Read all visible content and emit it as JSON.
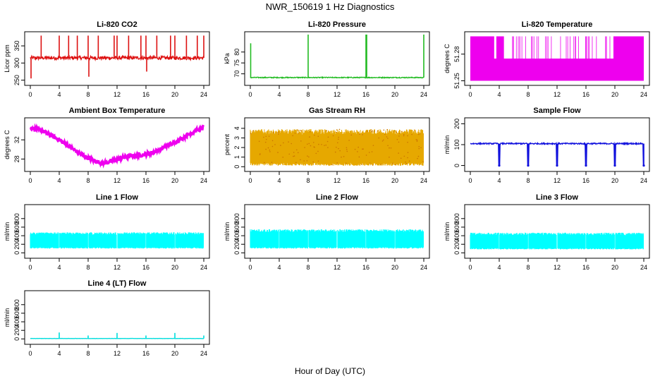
{
  "page": {
    "title": "NWR_150619  1 Hz Diagnostics",
    "xlabel": "Hour of Day (UTC)"
  },
  "chart_data": [
    {
      "id": "co2",
      "type": "line",
      "title": "Li-820 CO2",
      "ylabel": "Licor ppm",
      "color": "#dd1111",
      "x_ticks": [
        0,
        4,
        8,
        12,
        16,
        20,
        24
      ],
      "xlim": [
        0,
        24
      ],
      "ylim": [
        243,
        383
      ],
      "y_ticks": [
        250,
        300,
        350
      ],
      "base": 315,
      "noise": 5,
      "spikes": [
        {
          "x": 1.5,
          "y": 380
        },
        {
          "x": 4.0,
          "y": 380
        },
        {
          "x": 5.3,
          "y": 380
        },
        {
          "x": 6.5,
          "y": 380
        },
        {
          "x": 8.0,
          "y": 380
        },
        {
          "x": 8.1,
          "y": 260
        },
        {
          "x": 9.4,
          "y": 380
        },
        {
          "x": 11.6,
          "y": 380
        },
        {
          "x": 12.0,
          "y": 380
        },
        {
          "x": 13.6,
          "y": 380
        },
        {
          "x": 15.3,
          "y": 380
        },
        {
          "x": 16.0,
          "y": 380
        },
        {
          "x": 16.1,
          "y": 275
        },
        {
          "x": 17.5,
          "y": 380
        },
        {
          "x": 19.4,
          "y": 380
        },
        {
          "x": 20.0,
          "y": 380
        },
        {
          "x": 21.6,
          "y": 380
        },
        {
          "x": 23.1,
          "y": 380
        },
        {
          "x": 24.0,
          "y": 380
        },
        {
          "x": 0.1,
          "y": 255
        }
      ]
    },
    {
      "id": "pressure",
      "type": "line",
      "title": "Li-820 Pressure",
      "ylabel": "kPa",
      "color": "#22bb22",
      "x_ticks": [
        0,
        4,
        8,
        12,
        16,
        20,
        24
      ],
      "xlim": [
        0,
        24
      ],
      "ylim": [
        66,
        88
      ],
      "y_ticks": [
        70,
        75,
        80
      ],
      "base": 68.3,
      "noise": 0.2,
      "spikes": [
        {
          "x": 0.05,
          "y": 84
        },
        {
          "x": 8.0,
          "y": 88
        },
        {
          "x": 16.0,
          "y": 88
        },
        {
          "x": 16.1,
          "y": 88
        },
        {
          "x": 24.0,
          "y": 88
        }
      ]
    },
    {
      "id": "licor_temp",
      "type": "band",
      "title": "Li-820 Temperature",
      "ylabel": "degrees C",
      "color": "#ee00ee",
      "x_ticks": [
        0,
        4,
        8,
        12,
        16,
        20,
        24
      ],
      "xlim": [
        0,
        24
      ],
      "ylim": [
        51.248,
        51.302
      ],
      "y_ticks": [
        51.25,
        51.28
      ],
      "low": 51.25,
      "mid": 51.275,
      "high": 51.3,
      "high_ranges": [
        [
          0,
          3.3
        ],
        [
          3.6,
          4.6
        ],
        [
          19.8,
          24
        ]
      ]
    },
    {
      "id": "ambient_temp",
      "type": "line",
      "title": "Ambient Box Temperature",
      "ylabel": "degrees C",
      "color": "#ee00ee",
      "x_ticks": [
        0,
        4,
        8,
        12,
        16,
        20,
        24
      ],
      "xlim": [
        0,
        24
      ],
      "ylim": [
        26,
        36
      ],
      "y_ticks": [
        28,
        32
      ],
      "points": [
        [
          0,
          34.5
        ],
        [
          1,
          34.2
        ],
        [
          2,
          33.6
        ],
        [
          3,
          32.8
        ],
        [
          4,
          32.0
        ],
        [
          5,
          31.0
        ],
        [
          6,
          30.0
        ],
        [
          7,
          29.0
        ],
        [
          8,
          28.2
        ],
        [
          9,
          27.6
        ],
        [
          10,
          27.1
        ],
        [
          11,
          27.4
        ],
        [
          12,
          27.9
        ],
        [
          13,
          28.4
        ],
        [
          14,
          28.6
        ],
        [
          15,
          28.8
        ],
        [
          16,
          29.0
        ],
        [
          17,
          29.4
        ],
        [
          18,
          30.0
        ],
        [
          19,
          30.8
        ],
        [
          20,
          31.5
        ],
        [
          21,
          32.3
        ],
        [
          22,
          33.2
        ],
        [
          23,
          34.0
        ],
        [
          24,
          34.6
        ]
      ],
      "noise": 0.4
    },
    {
      "id": "gas_rh",
      "type": "band",
      "title": "Gas Stream RH",
      "ylabel": "percent",
      "color": "#e6a800",
      "dot_color": "#cc7700",
      "x_ticks": [
        0,
        4,
        8,
        12,
        16,
        20,
        24
      ],
      "xlim": [
        0,
        24
      ],
      "ylim": [
        -0.2,
        4.8
      ],
      "y_ticks": [
        0,
        1,
        2,
        3,
        4
      ],
      "low": 0.1,
      "high": 3.9
    },
    {
      "id": "sample_flow",
      "type": "line",
      "title": "Sample Flow",
      "ylabel": "ml/min",
      "color": "#1111dd",
      "x_ticks": [
        0,
        4,
        8,
        12,
        16,
        20,
        24
      ],
      "xlim": [
        0,
        24
      ],
      "ylim": [
        -15,
        215
      ],
      "y_ticks": [
        0,
        100,
        200
      ],
      "base": 105,
      "noise": 3,
      "dips": [
        4,
        8,
        12,
        16,
        20,
        24
      ]
    },
    {
      "id": "line1_flow",
      "type": "band",
      "title": "Line 1 Flow",
      "ylabel": "ml/min",
      "color": "#00ffff",
      "x_ticks": [
        0,
        4,
        8,
        12,
        16,
        20,
        24
      ],
      "xlim": [
        0,
        24
      ],
      "ylim": [
        -60,
        1060
      ],
      "y_ticks": [
        0,
        200,
        400,
        600,
        800
      ],
      "low": 100,
      "high": 480,
      "gaps": [
        4,
        8,
        12,
        16,
        20
      ]
    },
    {
      "id": "line2_flow",
      "type": "band",
      "title": "Line 2 Flow",
      "ylabel": "ml/min",
      "color": "#00ffff",
      "x_ticks": [
        0,
        4,
        8,
        12,
        16,
        20,
        24
      ],
      "xlim": [
        0,
        24
      ],
      "ylim": [
        -60,
        1060
      ],
      "y_ticks": [
        0,
        200,
        400,
        600,
        800
      ],
      "low": 100,
      "high": 550,
      "gaps": [
        4,
        8,
        12,
        16,
        20
      ]
    },
    {
      "id": "line3_flow",
      "type": "band",
      "title": "Line 3 Flow",
      "ylabel": "ml/min",
      "color": "#00ffff",
      "x_ticks": [
        0,
        4,
        8,
        12,
        16,
        20,
        24
      ],
      "xlim": [
        0,
        24
      ],
      "ylim": [
        -60,
        1060
      ],
      "y_ticks": [
        0,
        200,
        400,
        600,
        800
      ],
      "low": 80,
      "high": 470,
      "gaps": [
        4,
        8,
        12,
        16,
        20
      ]
    },
    {
      "id": "line4_flow",
      "type": "line",
      "title": "Line 4 (LT) Flow",
      "ylabel": "ml/min",
      "color": "#00dddd",
      "x_ticks": [
        0,
        4,
        8,
        12,
        16,
        20,
        24
      ],
      "xlim": [
        0,
        24
      ],
      "ylim": [
        -60,
        1060
      ],
      "y_ticks": [
        0,
        200,
        400,
        600,
        800
      ],
      "base": 10,
      "noise": 2,
      "spikes": [
        {
          "x": 4,
          "y": 150
        },
        {
          "x": 8,
          "y": 80
        },
        {
          "x": 12,
          "y": 140
        },
        {
          "x": 16,
          "y": 80
        },
        {
          "x": 20,
          "y": 140
        },
        {
          "x": 24,
          "y": 80
        }
      ]
    }
  ]
}
